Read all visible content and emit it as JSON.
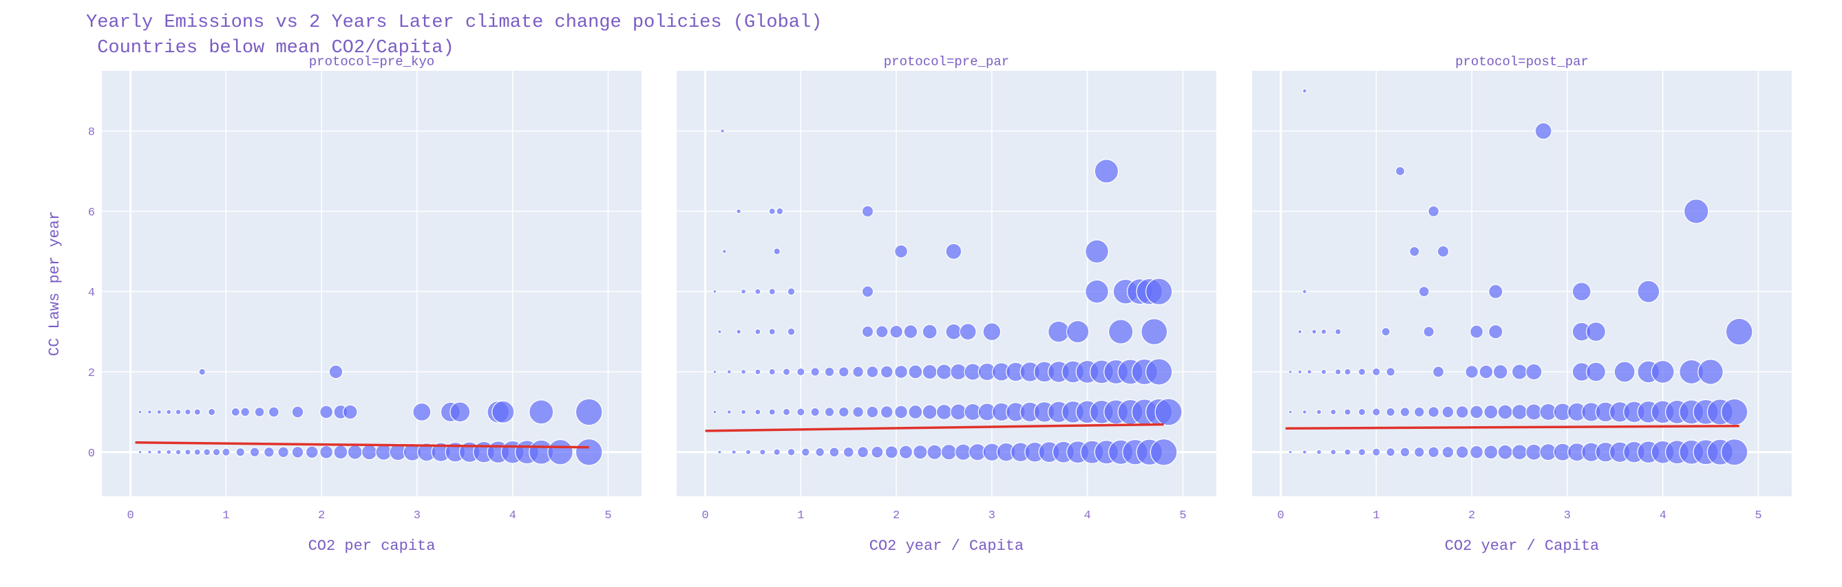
{
  "title": {
    "line1": "Yearly Emissions vs 2 Years Later climate change policies (Global)",
    "line2": " Countries below mean CO2/Capita)"
  },
  "colors": {
    "plot_bg": "#e5ecf6",
    "grid": "#ffffff",
    "marker": "#636efa",
    "trend": "#e0322a",
    "text": "#7a5cc4"
  },
  "chart_data": [
    {
      "type": "scatter",
      "panel_title": "protocol=pre_kyo",
      "xlabel": "CO2 per capita",
      "ylabel": "CC Laws per year",
      "xlim": [
        -0.3,
        5.35
      ],
      "ylim": [
        -1.1,
        9.5
      ],
      "xticks": [
        0,
        1,
        2,
        3,
        4,
        5
      ],
      "yticks": [
        0,
        2,
        4,
        6,
        8
      ],
      "grid": true,
      "trend": {
        "x0": 0.05,
        "y0": 0.24,
        "x1": 4.8,
        "y1": 0.12
      },
      "series": [
        {
          "x": [
            0.1,
            0.2,
            0.3,
            0.4,
            0.5,
            0.6,
            0.7,
            0.8,
            0.9,
            1.0,
            1.15,
            1.3,
            1.45,
            1.6,
            1.75,
            1.9,
            2.05,
            2.2,
            2.35,
            2.5,
            2.65,
            2.8,
            2.95,
            3.1,
            3.25,
            3.4,
            3.55,
            3.7,
            3.85,
            4.0,
            4.15,
            4.3,
            4.5,
            4.8,
            0.1,
            0.2,
            0.3,
            0.4,
            0.5,
            0.6,
            0.7,
            0.85,
            1.1,
            1.2,
            1.35,
            1.5,
            1.75,
            2.05,
            2.2,
            2.3,
            3.05,
            3.35,
            3.45,
            3.85,
            3.9,
            4.3,
            4.8,
            0.75,
            2.15
          ],
          "y": [
            0,
            0,
            0,
            0,
            0,
            0,
            0,
            0,
            0,
            0,
            0,
            0,
            0,
            0,
            0,
            0,
            0,
            0,
            0,
            0,
            0,
            0,
            0,
            0,
            0,
            0,
            0,
            0,
            0,
            0,
            0,
            0,
            0,
            0,
            1,
            1,
            1,
            1,
            1,
            1,
            1,
            1,
            1,
            1,
            1,
            1,
            1,
            1,
            1,
            1,
            1,
            1,
            1,
            1,
            1,
            1,
            1,
            2,
            2
          ]
        }
      ]
    },
    {
      "type": "scatter",
      "panel_title": "protocol=pre_par",
      "xlabel": "CO2 year / Capita",
      "ylabel": "",
      "xlim": [
        -0.3,
        5.35
      ],
      "ylim": [
        -1.1,
        9.5
      ],
      "xticks": [
        0,
        1,
        2,
        3,
        4,
        5
      ],
      "yticks": [
        0,
        2,
        4,
        6,
        8
      ],
      "grid": true,
      "trend": {
        "x0": 0.0,
        "y0": 0.53,
        "x1": 4.8,
        "y1": 0.69
      },
      "series": [
        {
          "x": [
            0.15,
            0.3,
            0.45,
            0.6,
            0.75,
            0.9,
            1.05,
            1.2,
            1.35,
            1.5,
            1.65,
            1.8,
            1.95,
            2.1,
            2.25,
            2.4,
            2.55,
            2.7,
            2.85,
            3.0,
            3.15,
            3.3,
            3.45,
            3.6,
            3.75,
            3.9,
            4.05,
            4.2,
            4.35,
            4.5,
            4.65,
            4.8,
            0.1,
            0.25,
            0.4,
            0.55,
            0.7,
            0.85,
            1.0,
            1.15,
            1.3,
            1.45,
            1.6,
            1.75,
            1.9,
            2.05,
            2.2,
            2.35,
            2.5,
            2.65,
            2.8,
            2.95,
            3.1,
            3.25,
            3.4,
            3.55,
            3.7,
            3.85,
            4.0,
            4.15,
            4.3,
            4.45,
            4.6,
            4.75,
            4.85,
            0.1,
            0.25,
            0.4,
            0.55,
            0.7,
            0.85,
            1.0,
            1.15,
            1.3,
            1.45,
            1.6,
            1.75,
            1.9,
            2.05,
            2.2,
            2.35,
            2.5,
            2.65,
            2.8,
            2.95,
            3.1,
            3.25,
            3.4,
            3.55,
            3.7,
            3.85,
            4.0,
            4.15,
            4.3,
            4.45,
            4.6,
            4.75,
            0.15,
            0.35,
            0.55,
            0.7,
            0.9,
            1.7,
            1.85,
            2.0,
            2.15,
            2.35,
            2.6,
            2.75,
            3.0,
            3.7,
            3.9,
            4.35,
            4.7,
            0.1,
            0.4,
            0.55,
            0.7,
            0.9,
            1.7,
            4.1,
            4.4,
            4.55,
            4.65,
            4.75,
            0.2,
            0.75,
            2.05,
            2.6,
            4.1,
            0.35,
            0.7,
            0.78,
            1.7,
            4.2,
            0.18
          ],
          "y": [
            0,
            0,
            0,
            0,
            0,
            0,
            0,
            0,
            0,
            0,
            0,
            0,
            0,
            0,
            0,
            0,
            0,
            0,
            0,
            0,
            0,
            0,
            0,
            0,
            0,
            0,
            0,
            0,
            0,
            0,
            0,
            0,
            1,
            1,
            1,
            1,
            1,
            1,
            1,
            1,
            1,
            1,
            1,
            1,
            1,
            1,
            1,
            1,
            1,
            1,
            1,
            1,
            1,
            1,
            1,
            1,
            1,
            1,
            1,
            1,
            1,
            1,
            1,
            1,
            1,
            2,
            2,
            2,
            2,
            2,
            2,
            2,
            2,
            2,
            2,
            2,
            2,
            2,
            2,
            2,
            2,
            2,
            2,
            2,
            2,
            2,
            2,
            2,
            2,
            2,
            2,
            2,
            2,
            2,
            2,
            2,
            2,
            3,
            3,
            3,
            3,
            3,
            3,
            3,
            3,
            3,
            3,
            3,
            3,
            3,
            3,
            3,
            3,
            3,
            4,
            4,
            4,
            4,
            4,
            4,
            4,
            4,
            4,
            4,
            4,
            5,
            5,
            5,
            5,
            5,
            6,
            6,
            6,
            6,
            7,
            8
          ]
        }
      ]
    },
    {
      "type": "scatter",
      "panel_title": "protocol=post_par",
      "xlabel": "CO2 year / Capita",
      "ylabel": "",
      "xlim": [
        -0.3,
        5.35
      ],
      "ylim": [
        -1.1,
        9.5
      ],
      "xticks": [
        0,
        1,
        2,
        3,
        4,
        5
      ],
      "yticks": [
        0,
        2,
        4,
        6,
        8
      ],
      "grid": true,
      "trend": {
        "x0": 0.05,
        "y0": 0.59,
        "x1": 4.8,
        "y1": 0.65
      },
      "series": [
        {
          "x": [
            0.1,
            0.25,
            0.4,
            0.55,
            0.7,
            0.85,
            1.0,
            1.15,
            1.3,
            1.45,
            1.6,
            1.75,
            1.9,
            2.05,
            2.2,
            2.35,
            2.5,
            2.65,
            2.8,
            2.95,
            3.1,
            3.25,
            3.4,
            3.55,
            3.7,
            3.85,
            4.0,
            4.15,
            4.3,
            4.45,
            4.6,
            4.75,
            0.1,
            0.25,
            0.4,
            0.55,
            0.7,
            0.85,
            1.0,
            1.15,
            1.3,
            1.45,
            1.6,
            1.75,
            1.9,
            2.05,
            2.2,
            2.35,
            2.5,
            2.65,
            2.8,
            2.95,
            3.1,
            3.25,
            3.4,
            3.55,
            3.7,
            3.85,
            4.0,
            4.15,
            4.3,
            4.45,
            4.6,
            4.75,
            0.1,
            0.2,
            0.3,
            0.45,
            0.6,
            0.7,
            0.85,
            1.0,
            1.15,
            1.65,
            2.0,
            2.15,
            2.3,
            2.5,
            2.65,
            3.15,
            3.3,
            3.6,
            3.85,
            4.0,
            4.3,
            4.5,
            0.2,
            0.35,
            0.45,
            0.6,
            1.1,
            1.55,
            2.05,
            2.25,
            3.15,
            3.3,
            4.8,
            0.25,
            1.5,
            2.25,
            3.15,
            3.85,
            1.4,
            1.7,
            1.6,
            4.35,
            1.25,
            2.75,
            0.25
          ],
          "y": [
            0,
            0,
            0,
            0,
            0,
            0,
            0,
            0,
            0,
            0,
            0,
            0,
            0,
            0,
            0,
            0,
            0,
            0,
            0,
            0,
            0,
            0,
            0,
            0,
            0,
            0,
            0,
            0,
            0,
            0,
            0,
            0,
            1,
            1,
            1,
            1,
            1,
            1,
            1,
            1,
            1,
            1,
            1,
            1,
            1,
            1,
            1,
            1,
            1,
            1,
            1,
            1,
            1,
            1,
            1,
            1,
            1,
            1,
            1,
            1,
            1,
            1,
            1,
            1,
            2,
            2,
            2,
            2,
            2,
            2,
            2,
            2,
            2,
            2,
            2,
            2,
            2,
            2,
            2,
            2,
            2,
            2,
            2,
            2,
            2,
            2,
            3,
            3,
            3,
            3,
            3,
            3,
            3,
            3,
            3,
            3,
            3,
            4,
            4,
            4,
            4,
            4,
            5,
            5,
            6,
            6,
            7,
            8,
            9
          ]
        }
      ]
    }
  ]
}
